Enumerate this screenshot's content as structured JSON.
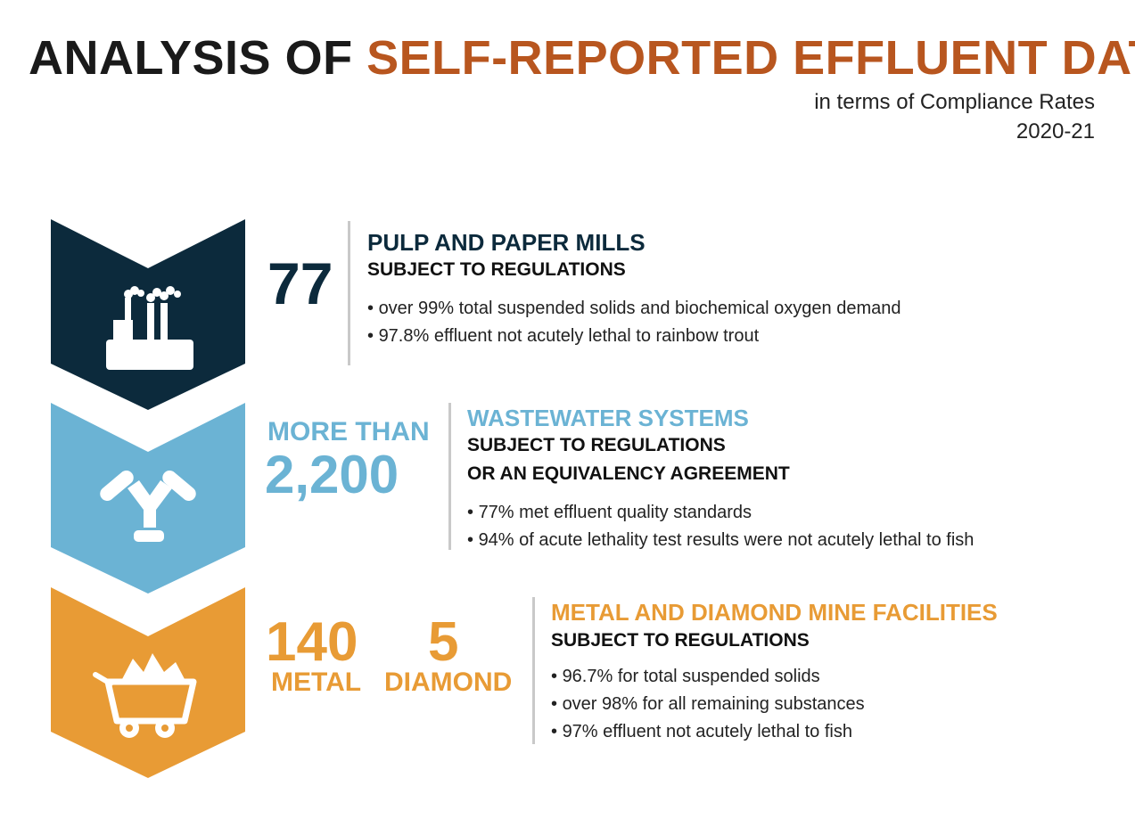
{
  "title": {
    "prefix": "ANALYSIS OF ",
    "accent": "SELF-REPORTED EFFLUENT DATA",
    "subtitle_line1": "in terms of Compliance Rates",
    "subtitle_line2": "2020-21"
  },
  "colors": {
    "accent": "#b8561f",
    "pulp": "#0c2a3c",
    "wastewater": "#6bb3d4",
    "mine": "#e89b35"
  },
  "sections": [
    {
      "icon": "factory-icon",
      "number": "77",
      "title": "PULP AND PAPER MILLS",
      "subtitle_lines": [
        "SUBJECT TO REGULATIONS"
      ],
      "bullets": [
        "over 99% total suspended solids and biochemical oxygen demand",
        "97.8% effluent not acutely lethal to rainbow trout"
      ]
    },
    {
      "icon": "pipe-junction-icon",
      "number_prefix": "MORE THAN",
      "number": "2,200",
      "title": "WASTEWATER SYSTEMS",
      "subtitle_lines": [
        "SUBJECT TO REGULATIONS",
        "OR AN EQUIVALENCY AGREEMENT"
      ],
      "bullets": [
        "77% met effluent quality standards",
        "94% of acute lethality test results were not acutely lethal to fish"
      ]
    },
    {
      "icon": "mine-cart-icon",
      "metal_number": "140",
      "metal_label": "METAL",
      "diamond_number": "5",
      "diamond_label": "DIAMOND",
      "title": "METAL AND DIAMOND MINE FACILITIES",
      "subtitle_lines": [
        "SUBJECT TO REGULATIONS"
      ],
      "bullets": [
        "96.7% for total suspended solids",
        "over 98% for all remaining substances",
        "97% effluent not acutely lethal to fish"
      ]
    }
  ]
}
